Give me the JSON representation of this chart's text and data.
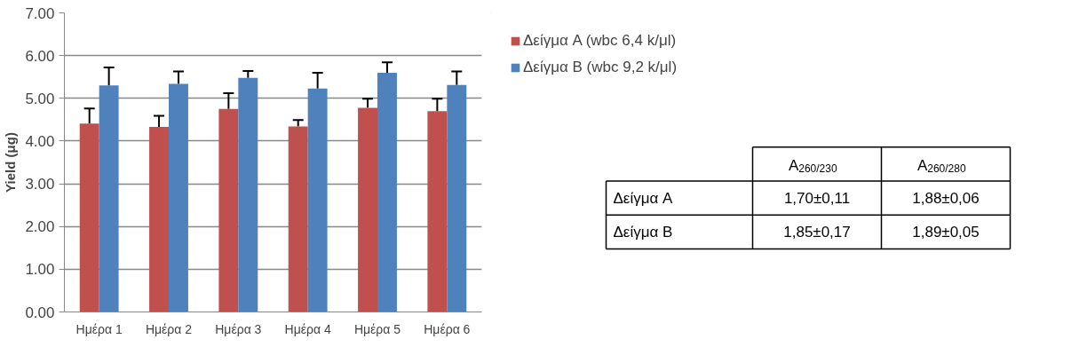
{
  "chart_data": [
    {
      "type": "bar",
      "ylabel": "Yield (μg)",
      "categories": [
        "Ημέρα 1",
        "Ημέρα 2",
        "Ημέρα 3",
        "Ημέρα 4",
        "Ημέρα 5",
        "Ημέρα 6"
      ],
      "series": [
        {
          "name": "Δείγμα A (wbc 6,4 k/μl)",
          "color": "#c0504d",
          "values": [
            4.41,
            4.33,
            4.75,
            4.34,
            4.78,
            4.7
          ],
          "errors": [
            [
              4.41,
              4.76
            ],
            [
              4.33,
              4.59
            ],
            [
              4.75,
              5.12
            ],
            [
              4.34,
              4.49
            ],
            [
              4.78,
              4.99
            ],
            [
              4.7,
              4.99
            ]
          ]
        },
        {
          "name": "Δείγμα B (wbc 9,2 k/μl)",
          "color": "#4f81bd",
          "values": [
            5.3,
            5.34,
            5.48,
            5.23,
            5.6,
            5.31
          ],
          "errors": [
            [
              5.3,
              5.72
            ],
            [
              5.34,
              5.63
            ],
            [
              5.48,
              5.64
            ],
            [
              5.23,
              5.6
            ],
            [
              5.6,
              5.84
            ],
            [
              5.31,
              5.63
            ]
          ]
        }
      ],
      "ylim": [
        0,
        7
      ],
      "yticks": [
        {
          "value": 0,
          "label": "0.00"
        },
        {
          "value": 1,
          "label": "1.00"
        },
        {
          "value": 2,
          "label": "2.00"
        },
        {
          "value": 3,
          "label": "3.00"
        },
        {
          "value": 4,
          "label": "4.00"
        },
        {
          "value": 5,
          "label": "5.00"
        },
        {
          "value": 6,
          "label": "6.00"
        },
        {
          "value": 7,
          "label": "7.00"
        }
      ],
      "grid": "y",
      "legend": "right"
    },
    {
      "type": "other",
      "categories": [
        null,
        "A$_{260/230}$",
        "A$_{260/280}$"
      ],
      "y_categories": [
        "Δείγμα A",
        "Δείγμα B"
      ],
      "cell_labels": [
        [
          "1,70±0,11",
          "1,88±0,06"
        ],
        [
          "1,85±0,17",
          "1,89±0,05"
        ]
      ]
    }
  ]
}
